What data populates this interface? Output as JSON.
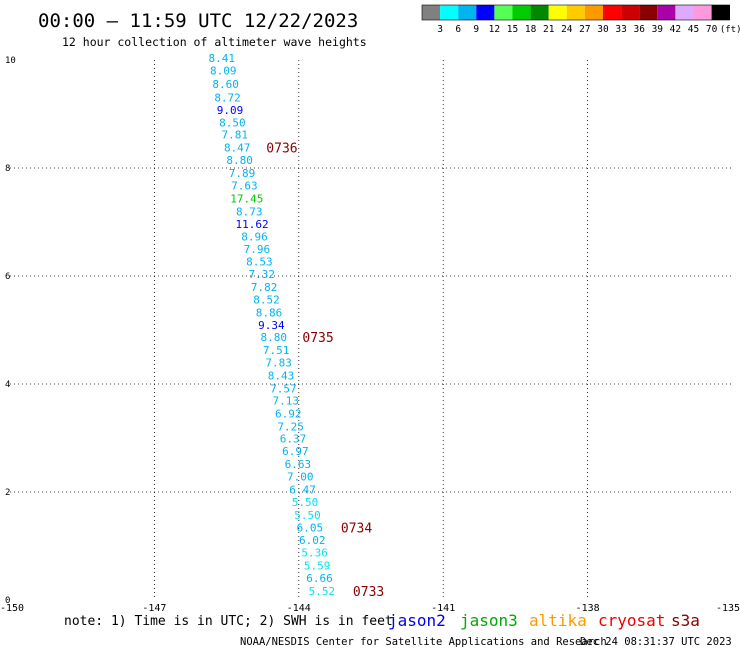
{
  "header": {
    "title": "00:00 – 11:59 UTC 12/22/2023",
    "subtitle": "12 hour collection of altimeter wave heights"
  },
  "legend_scale": {
    "labels": [
      "3",
      "6",
      "9",
      "12",
      "15",
      "18",
      "21",
      "24",
      "27",
      "30",
      "33",
      "36",
      "39",
      "42",
      "45",
      "70"
    ],
    "unit": "(ft)",
    "colors": [
      "#808080",
      "#00ffff",
      "#00b4f0",
      "#0000ff",
      "#55ff55",
      "#00cc00",
      "#008800",
      "#ffff00",
      "#ffcc00",
      "#ff9900",
      "#ff0000",
      "#cc0000",
      "#880000",
      "#aa00aa",
      "#ddaaff",
      "#ff99dd",
      "#000000"
    ]
  },
  "footer": {
    "note": "note: 1) Time is in UTC; 2) SWH is in feet",
    "credit": "NOAA/NESDIS Center for Satellite Applications and Research",
    "timestamp": "Dec 24 08:31:37 UTC 2023"
  },
  "satellites": [
    {
      "name": "jason2",
      "color": "#0000ee"
    },
    {
      "name": "jason3",
      "color": "#00aa00"
    },
    {
      "name": "altika",
      "color": "#ff9900"
    },
    {
      "name": "cryosat",
      "color": "#ee0000"
    },
    {
      "name": "s3a",
      "color": "#880000"
    }
  ],
  "chart_data": {
    "type": "scatter",
    "xlim": [
      -150,
      -135
    ],
    "ylim": [
      0,
      10
    ],
    "x_ticks": [
      "-150",
      "-147",
      "-144",
      "-141",
      "-138",
      "-135"
    ],
    "y_ticks": [
      "0",
      "2",
      "4",
      "6",
      "8",
      "10"
    ],
    "grid": true,
    "points": [
      {
        "lat": 10.0,
        "lon": -145.6,
        "swh": "8.41",
        "color": "#00b4f0"
      },
      {
        "lat": 9.77,
        "lon": -145.57,
        "swh": "8.09",
        "color": "#00b4f0"
      },
      {
        "lat": 9.52,
        "lon": -145.52,
        "swh": "8.60",
        "color": "#00b4f0"
      },
      {
        "lat": 9.27,
        "lon": -145.48,
        "swh": "8.72",
        "color": "#00b4f0"
      },
      {
        "lat": 9.04,
        "lon": -145.43,
        "swh": "9.09",
        "color": "#0000ff"
      },
      {
        "lat": 8.81,
        "lon": -145.38,
        "swh": "8.50",
        "color": "#00b4f0"
      },
      {
        "lat": 8.58,
        "lon": -145.33,
        "swh": "7.81",
        "color": "#00b4f0"
      },
      {
        "lat": 8.34,
        "lon": -145.28,
        "swh": "8.47",
        "color": "#00b4f0"
      },
      {
        "lat": 8.11,
        "lon": -145.23,
        "swh": "8.80",
        "color": "#00b4f0"
      },
      {
        "lat": 7.87,
        "lon": -145.18,
        "swh": "7.89",
        "color": "#00b4f0"
      },
      {
        "lat": 7.64,
        "lon": -145.13,
        "swh": "7.63",
        "color": "#00b4f0"
      },
      {
        "lat": 7.4,
        "lon": -145.08,
        "swh": "17.45",
        "color": "#00cc00"
      },
      {
        "lat": 7.16,
        "lon": -145.03,
        "swh": "8.73",
        "color": "#00b4f0"
      },
      {
        "lat": 6.93,
        "lon": -144.97,
        "swh": "11.62",
        "color": "#0000ff"
      },
      {
        "lat": 6.69,
        "lon": -144.92,
        "swh": "8.96",
        "color": "#00b4f0"
      },
      {
        "lat": 6.46,
        "lon": -144.87,
        "swh": "7.96",
        "color": "#00b4f0"
      },
      {
        "lat": 6.23,
        "lon": -144.82,
        "swh": "8.53",
        "color": "#00b4f0"
      },
      {
        "lat": 6.0,
        "lon": -144.77,
        "swh": "7.32",
        "color": "#00b4f0"
      },
      {
        "lat": 5.76,
        "lon": -144.72,
        "swh": "7.82",
        "color": "#00b4f0"
      },
      {
        "lat": 5.53,
        "lon": -144.67,
        "swh": "8.52",
        "color": "#00b4f0"
      },
      {
        "lat": 5.29,
        "lon": -144.62,
        "swh": "8.86",
        "color": "#00b4f0"
      },
      {
        "lat": 5.06,
        "lon": -144.57,
        "swh": "9.34",
        "color": "#0000ff"
      },
      {
        "lat": 4.83,
        "lon": -144.52,
        "swh": "8.80",
        "color": "#00b4f0"
      },
      {
        "lat": 4.59,
        "lon": -144.47,
        "swh": "7.51",
        "color": "#00b4f0"
      },
      {
        "lat": 4.36,
        "lon": -144.42,
        "swh": "7.83",
        "color": "#00b4f0"
      },
      {
        "lat": 4.12,
        "lon": -144.37,
        "swh": "8.43",
        "color": "#00b4f0"
      },
      {
        "lat": 3.88,
        "lon": -144.32,
        "swh": "7.57",
        "color": "#00b4f0"
      },
      {
        "lat": 3.66,
        "lon": -144.27,
        "swh": "7.13",
        "color": "#00b4f0"
      },
      {
        "lat": 3.42,
        "lon": -144.22,
        "swh": "6.92",
        "color": "#00b4f0"
      },
      {
        "lat": 3.18,
        "lon": -144.17,
        "swh": "7.25",
        "color": "#00b4f0"
      },
      {
        "lat": 2.95,
        "lon": -144.12,
        "swh": "6.37",
        "color": "#00b4f0"
      },
      {
        "lat": 2.72,
        "lon": -144.07,
        "swh": "6.97",
        "color": "#00b4f0"
      },
      {
        "lat": 2.48,
        "lon": -144.02,
        "swh": "6.63",
        "color": "#00b4f0"
      },
      {
        "lat": 2.25,
        "lon": -143.97,
        "swh": "7.00",
        "color": "#00b4f0"
      },
      {
        "lat": 2.01,
        "lon": -143.92,
        "swh": "6.47",
        "color": "#00b4f0"
      },
      {
        "lat": 1.78,
        "lon": -143.87,
        "swh": "5.50",
        "color": "#00e4f0"
      },
      {
        "lat": 1.54,
        "lon": -143.82,
        "swh": "5.50",
        "color": "#00e4f0"
      },
      {
        "lat": 1.31,
        "lon": -143.77,
        "swh": "6.05",
        "color": "#00b4f0"
      },
      {
        "lat": 1.07,
        "lon": -143.72,
        "swh": "6.02",
        "color": "#00b4f0"
      },
      {
        "lat": 0.84,
        "lon": -143.67,
        "swh": "5.36",
        "color": "#00e4f0"
      },
      {
        "lat": 0.6,
        "lon": -143.62,
        "swh": "5.59",
        "color": "#00e4f0"
      },
      {
        "lat": 0.37,
        "lon": -143.57,
        "swh": "6.66",
        "color": "#00b4f0"
      },
      {
        "lat": 0.13,
        "lon": -143.52,
        "swh": "5.52",
        "color": "#00e4f0"
      }
    ],
    "time_labels": [
      {
        "text": "0736",
        "lat": 8.34,
        "lon": -144.35
      },
      {
        "text": "0735",
        "lat": 4.83,
        "lon": -143.6
      },
      {
        "text": "0734",
        "lat": 1.31,
        "lon": -142.8
      },
      {
        "text": "0733",
        "lat": 0.13,
        "lon": -142.55
      }
    ],
    "time_label_color": "#880000"
  }
}
